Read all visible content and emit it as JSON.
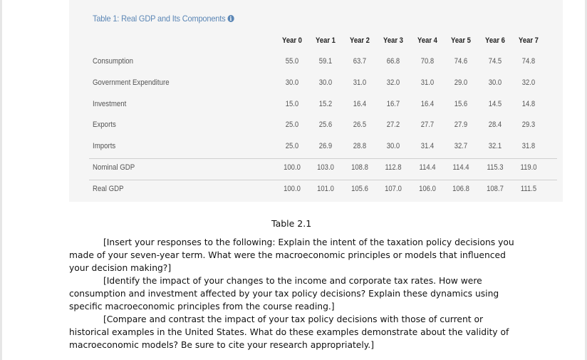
{
  "table": {
    "title": "Table 1: Real GDP and Its Components",
    "info_icon": "info-circle-icon",
    "columns": [
      "Year 0",
      "Year 1",
      "Year 2",
      "Year 3",
      "Year 4",
      "Year 5",
      "Year 6",
      "Year 7"
    ],
    "rows": [
      {
        "label": "Consumption",
        "values": [
          "55.0",
          "59.1",
          "63.7",
          "66.8",
          "70.8",
          "74.6",
          "74.5",
          "74.8"
        ]
      },
      {
        "label": "Government Expenditure",
        "values": [
          "30.0",
          "30.0",
          "31.0",
          "32.0",
          "31.0",
          "29.0",
          "30.0",
          "32.0"
        ]
      },
      {
        "label": "Investment",
        "values": [
          "15.0",
          "15.2",
          "16.4",
          "16.7",
          "16.4",
          "15.6",
          "14.5",
          "14.8"
        ]
      },
      {
        "label": "Exports",
        "values": [
          "25.0",
          "25.6",
          "26.5",
          "27.2",
          "27.7",
          "27.9",
          "28.4",
          "29.3"
        ]
      },
      {
        "label": "Imports",
        "values": [
          "25.0",
          "26.9",
          "28.8",
          "30.0",
          "31.4",
          "32.7",
          "32.1",
          "31.8"
        ]
      },
      {
        "label": "Nominal GDP",
        "values": [
          "100.0",
          "103.0",
          "108.8",
          "112.8",
          "114.4",
          "114.4",
          "115.3",
          "119.0"
        ]
      },
      {
        "label": "Real GDP",
        "values": [
          "100.0",
          "101.0",
          "105.6",
          "107.0",
          "106.0",
          "106.8",
          "108.7",
          "111.5"
        ]
      }
    ]
  },
  "caption": "Table 2.1",
  "paragraphs": [
    "[Insert your responses to the following: Explain the intent of the taxation policy decisions you made of your seven-year term. What were the macroeconomic principles or models that influenced your decision making?]",
    "[Identify the impact of your changes to the income and corporate tax rates. How were consumption and investment affected by your tax policy decisions? Explain these dynamics using specific macroeconomic principles from the course reading.]",
    "[Compare and contrast the impact of your tax policy decisions with those of current or historical examples in the United States. What do these examples demonstrate about the validity of macroeconomic models? Be sure to cite your research appropriately.]"
  ]
}
